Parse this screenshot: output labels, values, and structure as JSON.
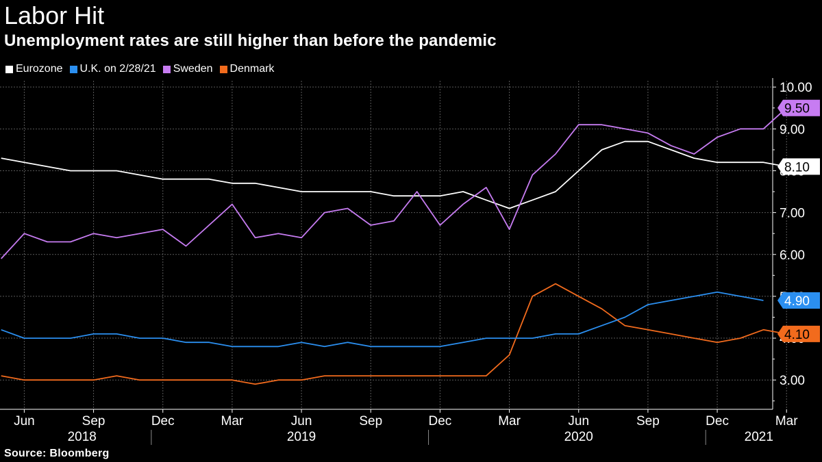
{
  "chart_data": {
    "type": "line",
    "title": "Labor Hit",
    "subtitle": "Unemployment rates are still higher than before the pandemic",
    "source": "Source: Bloomberg",
    "xlabel": "",
    "ylabel": "",
    "ylim": [
      2.3,
      10.15
    ],
    "yticks": [
      {
        "value": 3,
        "label": "3.00"
      },
      {
        "value": 4,
        "label": "4.00"
      },
      {
        "value": 5,
        "label": "5.00"
      },
      {
        "value": 6,
        "label": "6.00"
      },
      {
        "value": 7,
        "label": "7.00"
      },
      {
        "value": 8,
        "label": "8.00"
      },
      {
        "value": 9,
        "label": "9.00"
      },
      {
        "value": 10,
        "label": "10.00"
      }
    ],
    "xlim": [
      -0.05,
      33.4
    ],
    "month_ticks": [
      {
        "index": 1,
        "label": "Jun"
      },
      {
        "index": 4,
        "label": "Sep"
      },
      {
        "index": 7,
        "label": "Dec"
      },
      {
        "index": 10,
        "label": "Mar"
      },
      {
        "index": 13,
        "label": "Jun"
      },
      {
        "index": 16,
        "label": "Sep"
      },
      {
        "index": 19,
        "label": "Dec"
      },
      {
        "index": 22,
        "label": "Mar"
      },
      {
        "index": 25,
        "label": "Jun"
      },
      {
        "index": 28,
        "label": "Sep"
      },
      {
        "index": 31,
        "label": "Dec"
      },
      {
        "index": 34,
        "label": "Mar"
      }
    ],
    "year_labels": [
      {
        "center": 3.5,
        "label": "2018"
      },
      {
        "center": 13.0,
        "label": "2019"
      },
      {
        "center": 25.0,
        "label": "2020"
      },
      {
        "center": 32.8,
        "label": "2021"
      }
    ],
    "year_dividers": [
      6.5,
      18.5,
      30.5
    ],
    "series": [
      {
        "name": "Eurozone",
        "color": "#ffffff",
        "end_label": "8.10",
        "end_value": 8.1,
        "x": [
          0,
          1,
          2,
          3,
          4,
          5,
          6,
          7,
          8,
          9,
          10,
          11,
          12,
          13,
          14,
          15,
          16,
          17,
          18,
          19,
          20,
          21,
          22,
          23,
          24,
          25,
          26,
          27,
          28,
          29,
          30,
          31,
          32,
          33,
          34
        ],
        "values": [
          8.3,
          8.2,
          8.1,
          8.0,
          8.0,
          8.0,
          7.9,
          7.8,
          7.8,
          7.8,
          7.7,
          7.7,
          7.6,
          7.5,
          7.5,
          7.5,
          7.5,
          7.4,
          7.4,
          7.4,
          7.5,
          7.3,
          7.1,
          7.3,
          7.5,
          8.0,
          8.5,
          8.7,
          8.7,
          8.5,
          8.3,
          8.2,
          8.2,
          8.2,
          8.1
        ]
      },
      {
        "name": "U.K. on 2/28/21",
        "color": "#2b8ff0",
        "end_label": "4.90",
        "end_value": 4.9,
        "x": [
          0,
          1,
          2,
          3,
          4,
          5,
          6,
          7,
          8,
          9,
          10,
          11,
          12,
          13,
          14,
          15,
          16,
          17,
          18,
          19,
          20,
          21,
          22,
          23,
          24,
          25,
          26,
          27,
          28,
          29,
          30,
          31,
          32,
          33
        ],
        "values": [
          4.2,
          4.0,
          4.0,
          4.0,
          4.1,
          4.1,
          4.0,
          4.0,
          3.9,
          3.9,
          3.8,
          3.8,
          3.8,
          3.9,
          3.8,
          3.9,
          3.8,
          3.8,
          3.8,
          3.8,
          3.9,
          4.0,
          4.0,
          4.0,
          4.1,
          4.1,
          4.3,
          4.5,
          4.8,
          4.9,
          5.0,
          5.1,
          5.0,
          4.9
        ]
      },
      {
        "name": "Sweden",
        "color": "#c77cf2",
        "end_label": "9.50",
        "end_value": 9.5,
        "x": [
          0,
          1,
          2,
          3,
          4,
          5,
          6,
          7,
          8,
          9,
          10,
          11,
          12,
          13,
          14,
          15,
          16,
          17,
          18,
          19,
          20,
          21,
          22,
          23,
          24,
          25,
          26,
          27,
          28,
          29,
          30,
          31,
          32,
          33,
          34
        ],
        "values": [
          5.9,
          6.5,
          6.3,
          6.3,
          6.5,
          6.4,
          6.5,
          6.6,
          6.2,
          6.7,
          7.2,
          6.4,
          6.5,
          6.4,
          7.0,
          7.1,
          6.7,
          6.8,
          7.5,
          6.7,
          7.2,
          7.6,
          6.6,
          7.9,
          8.4,
          9.1,
          9.1,
          9.0,
          8.9,
          8.6,
          8.4,
          8.8,
          9.0,
          9.0,
          9.5
        ]
      },
      {
        "name": "Denmark",
        "color": "#f26b1d",
        "end_label": "4.10",
        "end_value": 4.1,
        "x": [
          0,
          1,
          2,
          3,
          4,
          5,
          6,
          7,
          8,
          9,
          10,
          11,
          12,
          13,
          14,
          15,
          16,
          17,
          18,
          19,
          20,
          21,
          22,
          23,
          24,
          25,
          26,
          27,
          28,
          29,
          30,
          31,
          32,
          33,
          34
        ],
        "values": [
          3.1,
          3.0,
          3.0,
          3.0,
          3.0,
          3.1,
          3.0,
          3.0,
          3.0,
          3.0,
          3.0,
          2.9,
          3.0,
          3.0,
          3.1,
          3.1,
          3.1,
          3.1,
          3.1,
          3.1,
          3.1,
          3.1,
          3.6,
          5.0,
          5.3,
          5.0,
          4.7,
          4.3,
          4.2,
          4.1,
          4.0,
          3.9,
          4.0,
          4.2,
          4.1
        ]
      }
    ]
  }
}
